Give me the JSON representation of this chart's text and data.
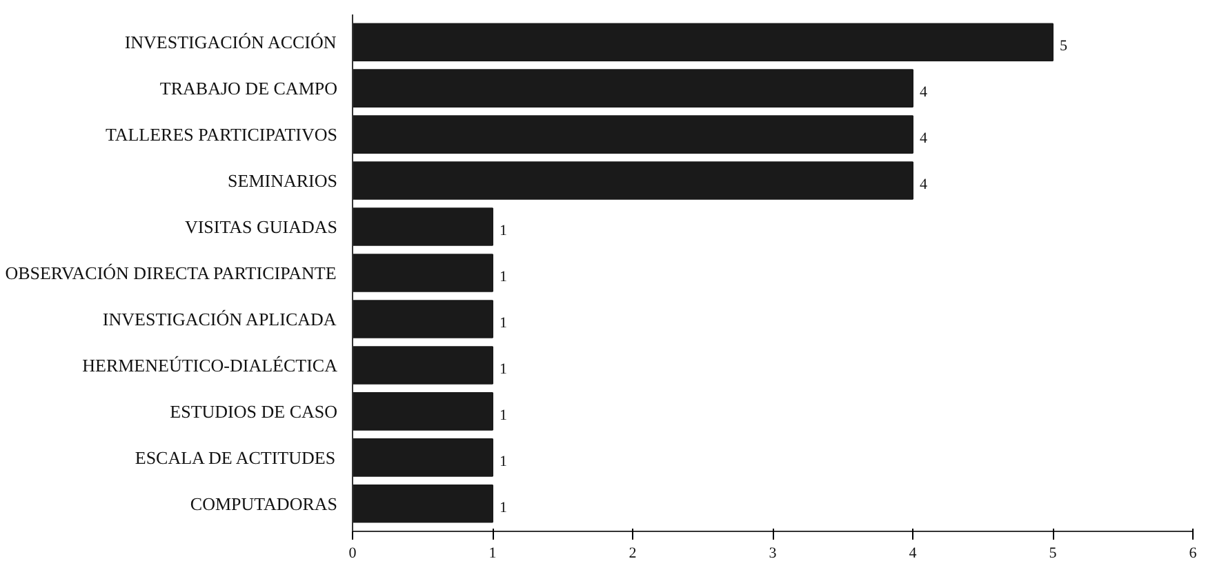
{
  "chart_data": {
    "type": "bar",
    "orientation": "horizontal",
    "categories": [
      "INVESTIGACIÓN ACCIÓN",
      "TRABAJO DE CAMPO",
      "TALLERES PARTICIPATIVOS",
      "SEMINARIOS",
      "VISITAS GUIADAS",
      "OBSERVACIÓN DIRECTA PARTICIPANTE",
      "INVESTIGACIÓN APLICADA",
      "HERMENEÚTICO-DIALÉCTICA",
      "ESTUDIOS DE CASO",
      "ESCALA DE ACTITUDES",
      "COMPUTADORAS"
    ],
    "values": [
      5,
      4,
      4,
      4,
      1,
      1,
      1,
      1,
      1,
      1,
      1
    ],
    "color": "#1a1a1a",
    "xlim": [
      0,
      6
    ],
    "xticks": [
      0,
      1,
      2,
      3,
      4,
      5,
      6
    ],
    "data_labels": true,
    "grid": false
  }
}
